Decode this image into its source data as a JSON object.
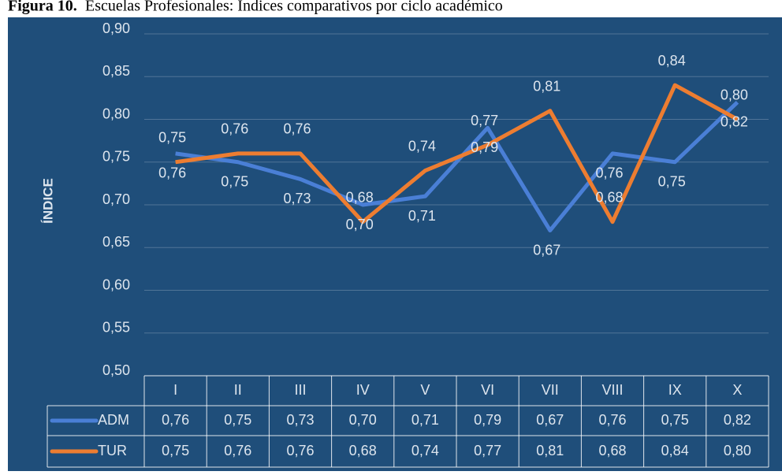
{
  "chart_data": {
    "type": "line",
    "figure_label": "Figura 10.",
    "title": "Escuelas Profesionales: Índices comparativos por ciclo académico",
    "y_label": "ÍNDICE",
    "categories": [
      "I",
      "II",
      "III",
      "IV",
      "V",
      "VI",
      "VII",
      "VIII",
      "IX",
      "X"
    ],
    "series": [
      {
        "name": "ADM",
        "color": "#4a7fd6",
        "values": [
          0.76,
          0.75,
          0.73,
          0.7,
          0.71,
          0.79,
          0.67,
          0.76,
          0.75,
          0.82
        ],
        "value_labels": [
          "0,76",
          "0,75",
          "0,73",
          "0,70",
          "0,71",
          "0,79",
          "0,67",
          "0,76",
          "0,75",
          "0,82"
        ]
      },
      {
        "name": "TUR",
        "color": "#ed7d31",
        "values": [
          0.75,
          0.76,
          0.76,
          0.68,
          0.74,
          0.77,
          0.81,
          0.68,
          0.84,
          0.8
        ],
        "value_labels": [
          "0,75",
          "0,76",
          "0,76",
          "0,68",
          "0,74",
          "0,77",
          "0,81",
          "0,68",
          "0,84",
          "0,80"
        ]
      }
    ],
    "ylim": [
      0.5,
      0.9
    ],
    "yticks": [
      {
        "value": 0.5,
        "label": "0,50"
      },
      {
        "value": 0.55,
        "label": "0,55"
      },
      {
        "value": 0.6,
        "label": "0,60"
      },
      {
        "value": 0.65,
        "label": "0,65"
      },
      {
        "value": 0.7,
        "label": "0,70"
      },
      {
        "value": 0.75,
        "label": "0,75"
      },
      {
        "value": 0.8,
        "label": "0,80"
      },
      {
        "value": 0.85,
        "label": "0,85"
      },
      {
        "value": 0.9,
        "label": "0,90"
      }
    ],
    "grid": true,
    "data_table": true
  }
}
